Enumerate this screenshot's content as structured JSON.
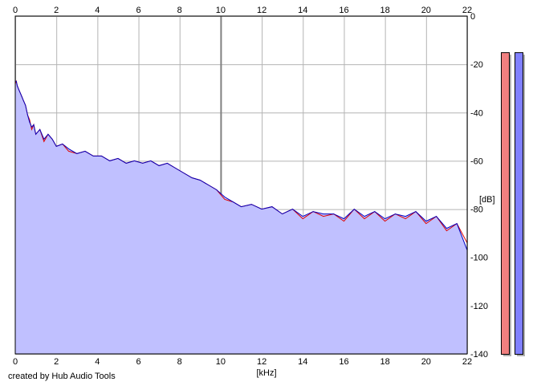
{
  "credit": "created by Hub Audio Tools",
  "chart_data": {
    "type": "area",
    "title": "",
    "xlabel": "[kHz]",
    "ylabel": "[dB]",
    "xlim": [
      0,
      22
    ],
    "ylim": [
      -140,
      0
    ],
    "x_ticks": [
      0,
      2,
      4,
      6,
      8,
      10,
      12,
      14,
      16,
      18,
      20,
      22
    ],
    "x_tick_labels": [
      "0",
      "2",
      "4",
      "6",
      "8",
      "10",
      "12",
      "14",
      "16",
      "18",
      "20",
      "22"
    ],
    "y_ticks": [
      0,
      -20,
      -40,
      -60,
      -80,
      -100,
      -120,
      -140
    ],
    "y_tick_labels": [
      "0",
      "-20",
      "-40",
      "-60",
      "-80",
      "-100",
      "-120",
      "-140"
    ],
    "x_axis_positions": [
      "top",
      "bottom"
    ],
    "y_axis_position": "right",
    "grid": true,
    "legend": "none",
    "colors": {
      "area_fill": "#c0c0ff",
      "channel_1_line": "#e00000",
      "channel_2_line": "#0000c0",
      "meter_1": "#f08080",
      "meter_2": "#8080ff",
      "meter_shadow": "#b0b0b0",
      "grid": "#b4b4b4",
      "major_grid": "#808080"
    },
    "series": [
      {
        "color": "#e00000",
        "x": [
          0,
          0.05,
          0.1,
          0.2,
          0.3,
          0.4,
          0.5,
          0.6,
          0.7,
          0.8,
          0.9,
          1.0,
          1.2,
          1.4,
          1.6,
          1.8,
          2.0,
          2.3,
          2.6,
          3.0,
          3.4,
          3.8,
          4.2,
          4.6,
          5.0,
          5.4,
          5.8,
          6.2,
          6.6,
          7.0,
          7.4,
          7.8,
          8.2,
          8.6,
          9.0,
          9.4,
          9.8,
          10.2,
          10.6,
          11.0,
          11.5,
          12.0,
          12.5,
          13.0,
          13.5,
          14.0,
          14.5,
          15.0,
          15.5,
          16.0,
          16.5,
          17.0,
          17.5,
          18.0,
          18.5,
          19.0,
          19.5,
          20.0,
          20.5,
          21.0,
          21.5,
          22.0
        ],
        "y": [
          -28,
          -27,
          -29,
          -31,
          -33,
          -35,
          -37,
          -41,
          -43,
          -47,
          -45,
          -49,
          -47,
          -52,
          -49,
          -51,
          -54,
          -53,
          -56,
          -57,
          -56,
          -58,
          -58,
          -60,
          -59,
          -61,
          -60,
          -61,
          -60,
          -62,
          -61,
          -63,
          -65,
          -67,
          -68,
          -70,
          -72,
          -76,
          -77,
          -79,
          -78,
          -80,
          -79,
          -82,
          -80,
          -84,
          -81,
          -83,
          -82,
          -85,
          -80,
          -84,
          -81,
          -85,
          -82,
          -84,
          -81,
          -86,
          -83,
          -89,
          -86,
          -94
        ]
      },
      {
        "color": "#0000c0",
        "x": [
          0,
          0.05,
          0.1,
          0.2,
          0.3,
          0.4,
          0.5,
          0.6,
          0.7,
          0.8,
          0.9,
          1.0,
          1.2,
          1.4,
          1.6,
          1.8,
          2.0,
          2.3,
          2.6,
          3.0,
          3.4,
          3.8,
          4.2,
          4.6,
          5.0,
          5.4,
          5.8,
          6.2,
          6.6,
          7.0,
          7.4,
          7.8,
          8.2,
          8.6,
          9.0,
          9.4,
          9.8,
          10.2,
          10.6,
          11.0,
          11.5,
          12.0,
          12.5,
          13.0,
          13.5,
          14.0,
          14.5,
          15.0,
          15.5,
          16.0,
          16.5,
          17.0,
          17.5,
          18.0,
          18.5,
          19.0,
          19.5,
          20.0,
          20.5,
          21.0,
          21.5,
          22.0
        ],
        "y": [
          -27,
          -27,
          -29,
          -31,
          -33,
          -35,
          -37,
          -41,
          -44,
          -46,
          -45,
          -49,
          -47,
          -51,
          -49,
          -51,
          -54,
          -53,
          -55,
          -57,
          -56,
          -58,
          -58,
          -60,
          -59,
          -61,
          -60,
          -61,
          -60,
          -62,
          -61,
          -63,
          -65,
          -67,
          -68,
          -70,
          -72,
          -75,
          -77,
          -79,
          -78,
          -80,
          -79,
          -82,
          -80,
          -83,
          -81,
          -82,
          -82,
          -84,
          -80,
          -83,
          -81,
          -84,
          -82,
          -83,
          -81,
          -85,
          -83,
          -88,
          -86,
          -97
        ]
      }
    ],
    "level_meters": [
      {
        "channel": 1,
        "color": "#f08080",
        "level_db": -15
      },
      {
        "channel": 2,
        "color": "#8080ff",
        "level_db": -15
      }
    ]
  }
}
